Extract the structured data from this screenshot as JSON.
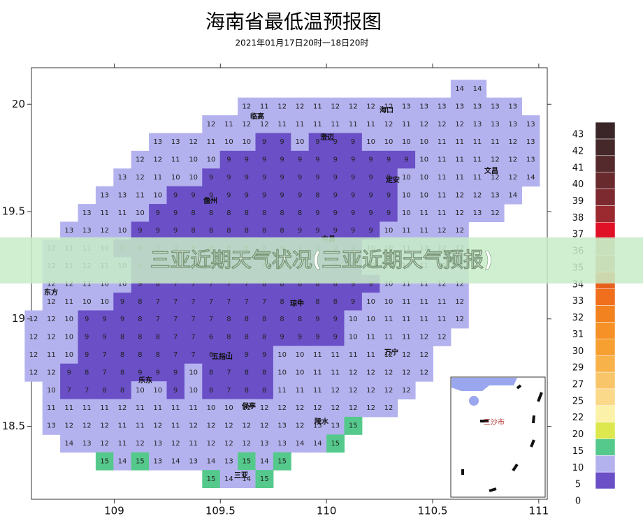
{
  "title": "海南省最低温预报图",
  "subtitle": "2021年01月17日20时一18日20时",
  "banner": "三亚近期天气状况(三亚近期天气预报)",
  "axes": {
    "xlim": [
      108.61,
      111.04
    ],
    "ylim": [
      18.16,
      20.17
    ],
    "xticks": [
      109,
      109.5,
      110,
      110.5,
      111
    ],
    "yticks": [
      20,
      19.5,
      19,
      18.5
    ]
  },
  "legend": {
    "labels": [
      0,
      5,
      10,
      15,
      20,
      22,
      25,
      27,
      29,
      30,
      31,
      32,
      33,
      34,
      35,
      36,
      37,
      38,
      39,
      40,
      41,
      42,
      43
    ],
    "colors": [
      "#6a4fc7",
      "#b4b2ee",
      "#55c98c",
      "#dde84f",
      "#fbf1a9",
      "#fbd98b",
      "#f9c56a",
      "#f8b24a",
      "#f7a032",
      "#f59126",
      "#f2821f",
      "#ef6f1d",
      "#e8611c",
      "#c89060",
      "#caa078",
      "#e01126",
      "#9a2a30",
      "#7c2a30",
      "#692a2e",
      "#552a2c",
      "#45282a",
      "#3a2628"
    ]
  },
  "cities": [
    "临高",
    "澄迈",
    "海口",
    "文昌",
    "定安",
    "儋州",
    "屯昌",
    "琼中",
    "东方",
    "万宁",
    "五指山",
    "乐东",
    "保亭",
    "陵水",
    "三亚"
  ],
  "inset": {
    "label": "三沙市"
  },
  "grid": {
    "rows": [
      [
        null,
        null,
        null,
        null,
        null,
        null,
        null,
        null,
        null,
        null,
        null,
        null,
        null,
        null,
        null,
        null,
        null,
        null,
        null,
        null,
        null,
        null,
        null,
        null,
        14,
        14,
        null,
        null,
        null
      ],
      [
        null,
        null,
        null,
        null,
        null,
        null,
        null,
        null,
        null,
        null,
        null,
        null,
        12,
        11,
        12,
        12,
        11,
        12,
        12,
        12,
        12,
        13,
        13,
        13,
        13,
        13,
        13,
        13,
        null
      ],
      [
        null,
        null,
        null,
        null,
        null,
        null,
        null,
        null,
        null,
        null,
        12,
        11,
        12,
        12,
        11,
        11,
        11,
        11,
        11,
        11,
        12,
        11,
        12,
        12,
        12,
        13,
        13,
        13,
        13
      ],
      [
        null,
        null,
        null,
        null,
        null,
        null,
        null,
        13,
        13,
        12,
        11,
        10,
        10,
        9,
        9,
        10,
        9,
        9,
        9,
        10,
        10,
        10,
        10,
        11,
        11,
        11,
        11,
        12,
        13
      ],
      [
        null,
        null,
        null,
        null,
        null,
        null,
        12,
        12,
        11,
        10,
        10,
        9,
        9,
        9,
        9,
        9,
        9,
        9,
        9,
        9,
        9,
        9,
        10,
        11,
        11,
        11,
        12,
        12,
        13
      ],
      [
        null,
        null,
        null,
        null,
        null,
        13,
        12,
        11,
        10,
        10,
        9,
        9,
        9,
        9,
        9,
        9,
        9,
        9,
        9,
        9,
        9,
        10,
        10,
        11,
        11,
        11,
        12,
        12,
        14
      ],
      [
        null,
        null,
        null,
        null,
        13,
        13,
        11,
        10,
        9,
        9,
        9,
        9,
        9,
        9,
        9,
        9,
        8,
        9,
        9,
        9,
        9,
        10,
        10,
        11,
        12,
        12,
        13,
        14,
        null
      ],
      [
        null,
        null,
        null,
        13,
        11,
        11,
        10,
        9,
        9,
        8,
        8,
        8,
        8,
        8,
        8,
        8,
        9,
        9,
        9,
        9,
        9,
        10,
        11,
        11,
        12,
        13,
        12,
        null,
        null
      ],
      [
        null,
        null,
        13,
        13,
        12,
        10,
        9,
        9,
        9,
        8,
        8,
        8,
        8,
        8,
        8,
        9,
        9,
        9,
        9,
        9,
        10,
        11,
        11,
        12,
        12,
        null,
        null,
        null,
        null
      ],
      [
        null,
        12,
        11,
        11,
        10,
        9,
        9,
        9,
        9,
        8,
        8,
        8,
        8,
        8,
        9,
        9,
        9,
        9,
        9,
        10,
        10,
        11,
        12,
        12,
        12,
        null,
        null,
        null,
        null
      ],
      [
        null,
        12,
        11,
        12,
        11,
        10,
        9,
        8,
        8,
        8,
        8,
        8,
        8,
        8,
        8,
        9,
        9,
        9,
        9,
        10,
        10,
        11,
        11,
        12,
        12,
        null,
        null,
        null,
        null
      ],
      [
        null,
        12,
        12,
        11,
        10,
        10,
        9,
        8,
        7,
        7,
        7,
        7,
        7,
        8,
        8,
        8,
        8,
        8,
        9,
        9,
        10,
        11,
        11,
        12,
        12,
        null,
        null,
        null,
        null
      ],
      [
        null,
        12,
        11,
        10,
        10,
        9,
        8,
        7,
        7,
        7,
        7,
        7,
        7,
        7,
        8,
        8,
        8,
        8,
        9,
        10,
        10,
        11,
        11,
        11,
        12,
        null,
        null,
        null,
        null
      ],
      [
        12,
        12,
        10,
        9,
        9,
        9,
        8,
        7,
        7,
        7,
        7,
        8,
        8,
        8,
        8,
        8,
        9,
        9,
        10,
        10,
        11,
        11,
        11,
        11,
        12,
        null,
        null,
        null,
        null
      ],
      [
        12,
        12,
        10,
        9,
        9,
        8,
        8,
        8,
        7,
        7,
        6,
        8,
        8,
        8,
        9,
        9,
        9,
        9,
        10,
        11,
        11,
        11,
        12,
        12,
        null,
        null,
        null,
        null,
        null
      ],
      [
        12,
        11,
        10,
        9,
        7,
        8,
        8,
        8,
        7,
        7,
        6,
        7,
        9,
        9,
        10,
        10,
        11,
        11,
        11,
        11,
        12,
        12,
        12,
        null,
        null,
        null,
        null,
        null,
        null
      ],
      [
        12,
        12,
        9,
        8,
        7,
        8,
        9,
        9,
        9,
        10,
        8,
        7,
        8,
        8,
        10,
        10,
        11,
        11,
        12,
        12,
        12,
        12,
        12,
        null,
        null,
        null,
        null,
        null,
        null
      ],
      [
        null,
        10,
        7,
        7,
        8,
        8,
        10,
        10,
        9,
        10,
        8,
        7,
        8,
        8,
        11,
        11,
        11,
        12,
        12,
        12,
        12,
        12,
        null,
        null,
        null,
        null,
        null,
        null,
        null
      ],
      [
        null,
        11,
        11,
        11,
        11,
        12,
        11,
        11,
        11,
        11,
        10,
        10,
        11,
        12,
        12,
        12,
        12,
        12,
        12,
        12,
        12,
        null,
        null,
        null,
        null,
        null,
        null,
        null,
        null
      ],
      [
        null,
        13,
        12,
        12,
        12,
        11,
        11,
        12,
        11,
        12,
        12,
        12,
        12,
        12,
        13,
        12,
        13,
        13,
        15,
        null,
        null,
        null,
        null,
        null,
        null,
        null,
        null,
        null,
        null
      ],
      [
        null,
        null,
        14,
        13,
        12,
        11,
        12,
        13,
        12,
        11,
        12,
        12,
        12,
        13,
        13,
        14,
        14,
        15,
        null,
        null,
        null,
        null,
        null,
        null,
        null,
        null,
        null,
        null,
        null
      ],
      [
        null,
        null,
        null,
        null,
        15,
        14,
        15,
        13,
        14,
        13,
        14,
        13,
        15,
        14,
        15,
        null,
        null,
        null,
        null,
        null,
        null,
        null,
        null,
        null,
        null,
        null,
        null,
        null,
        null
      ],
      [
        null,
        null,
        null,
        null,
        null,
        null,
        null,
        null,
        null,
        null,
        15,
        14,
        14,
        15,
        null,
        null,
        null,
        null,
        null,
        null,
        null,
        null,
        null,
        null,
        null,
        null,
        null,
        null,
        null
      ]
    ]
  }
}
